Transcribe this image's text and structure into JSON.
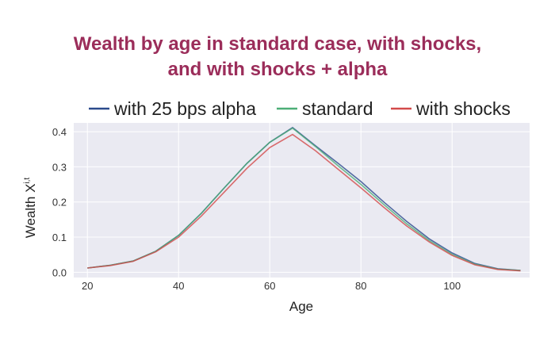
{
  "chart_data": {
    "type": "line",
    "title": [
      "Wealth by age in standard case, with shocks,",
      "and with shocks + alpha"
    ],
    "xlabel": "Age",
    "ylabel": "Wealth X",
    "ylabel_superscript": "i,t",
    "xlim": [
      17,
      117
    ],
    "ylim": [
      -0.015,
      0.425
    ],
    "xticks": [
      20,
      40,
      60,
      80,
      100
    ],
    "yticks": [
      0.0,
      0.1,
      0.2,
      0.3,
      0.4
    ],
    "ytick_labels": [
      "0.0",
      "0.1",
      "0.2",
      "0.3",
      "0.4"
    ],
    "grid": true,
    "legend_position": "top",
    "colors": {
      "title": "#9b2d5a",
      "plot_bg": "#eaeaf2",
      "grid": "#ffffff"
    },
    "series": [
      {
        "name": "with 25 bps alpha",
        "color": "#2b4a8c",
        "x": [
          20,
          25,
          30,
          35,
          40,
          45,
          50,
          55,
          60,
          65,
          70,
          75,
          80,
          85,
          90,
          95,
          100,
          105,
          110,
          115
        ],
        "y": [
          0.012,
          0.02,
          0.032,
          0.06,
          0.105,
          0.168,
          0.24,
          0.31,
          0.37,
          0.412,
          0.36,
          0.31,
          0.258,
          0.2,
          0.145,
          0.095,
          0.055,
          0.025,
          0.01,
          0.005
        ]
      },
      {
        "name": "standard",
        "color": "#4cae77",
        "x": [
          20,
          25,
          30,
          35,
          40,
          45,
          50,
          55,
          60,
          65,
          70,
          75,
          80,
          85,
          90,
          95,
          100,
          105,
          110,
          115
        ],
        "y": [
          0.012,
          0.02,
          0.032,
          0.06,
          0.105,
          0.168,
          0.24,
          0.31,
          0.37,
          0.41,
          0.358,
          0.303,
          0.25,
          0.193,
          0.138,
          0.09,
          0.051,
          0.023,
          0.009,
          0.005
        ]
      },
      {
        "name": "with shocks",
        "color": "#d34a4a",
        "x": [
          20,
          25,
          30,
          35,
          40,
          45,
          50,
          55,
          60,
          65,
          70,
          75,
          80,
          85,
          90,
          95,
          100,
          105,
          110,
          115
        ],
        "y": [
          0.012,
          0.019,
          0.031,
          0.058,
          0.1,
          0.16,
          0.228,
          0.296,
          0.355,
          0.392,
          0.346,
          0.293,
          0.24,
          0.185,
          0.132,
          0.086,
          0.048,
          0.021,
          0.008,
          0.004
        ]
      }
    ]
  }
}
